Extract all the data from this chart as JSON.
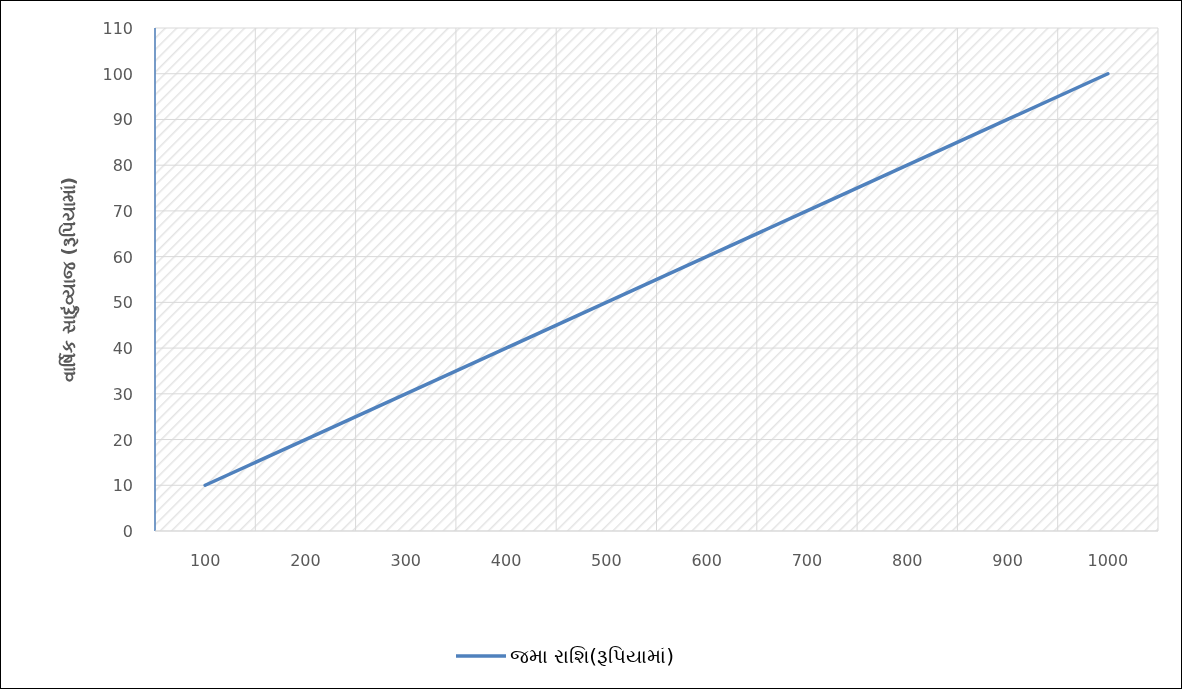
{
  "chart_data": {
    "type": "line",
    "ylabel": "વાર્ષિક સાદુંવ્યાજ (રૂપિયામાં)",
    "categories": [
      "100",
      "200",
      "300",
      "400",
      "500",
      "600",
      "700",
      "800",
      "900",
      "1000"
    ],
    "series": [
      {
        "name": "જમા રાશિ(રૂપિયામાં)",
        "color": "#4f81bd",
        "values": [
          10,
          20,
          30,
          40,
          50,
          60,
          70,
          80,
          90,
          100
        ]
      }
    ],
    "ylim": [
      0,
      110
    ],
    "yticks": [
      0,
      10,
      20,
      30,
      40,
      50,
      60,
      70,
      80,
      90,
      100,
      110
    ],
    "grid": true,
    "legend": "bottom",
    "marker": "none",
    "line_style": "solid"
  }
}
